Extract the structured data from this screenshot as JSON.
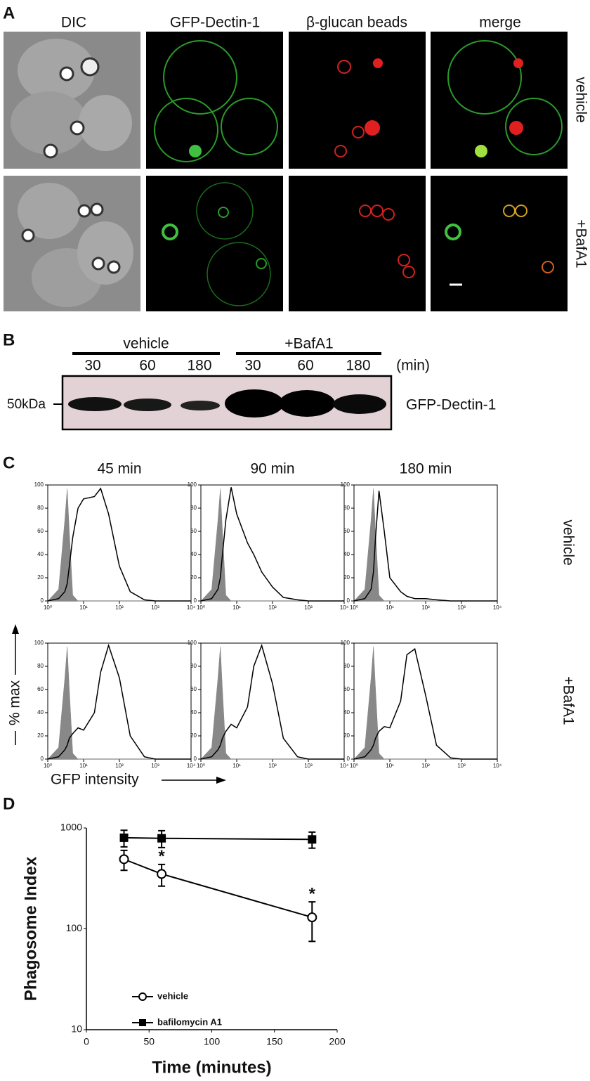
{
  "panels": {
    "A": {
      "label": "A",
      "columns": [
        "DIC",
        "GFP-Dectin-1",
        "β-glucan beads",
        "merge"
      ],
      "rows": [
        "vehicle",
        "+BafA1"
      ]
    },
    "B": {
      "label": "B",
      "groups": [
        "vehicle",
        "+BafA1"
      ],
      "times": [
        "30",
        "60",
        "180",
        "30",
        "60",
        "180"
      ],
      "unit": "(min)",
      "marker": "50kDa",
      "band_label": "GFP-Dectin-1"
    },
    "C": {
      "label": "C",
      "columns": [
        "45 min",
        "90 min",
        "180 min"
      ],
      "rows": [
        "vehicle",
        "+BafA1"
      ],
      "y_label": "% max",
      "x_label": "GFP intensity"
    },
    "D": {
      "label": "D"
    }
  },
  "chart_data": [
    {
      "type": "line",
      "frame": true,
      "log_x": true,
      "x": [
        1,
        2,
        3,
        3.5,
        4,
        5,
        7,
        10,
        20,
        30,
        50,
        100,
        200,
        500,
        1000,
        10000
      ],
      "series": [
        {
          "color": "#888888",
          "fill": true,
          "values": [
            0,
            10,
            70,
            97,
            60,
            5,
            0,
            0,
            0,
            0,
            0,
            0,
            0,
            0,
            0,
            0
          ]
        },
        {
          "color": "#000000",
          "values": [
            0,
            2,
            8,
            15,
            30,
            55,
            80,
            88,
            90,
            97,
            75,
            30,
            8,
            1,
            0,
            0
          ]
        }
      ],
      "xlim": [
        1,
        10000
      ],
      "xticks": [
        {
          "value": 1,
          "label": "10⁰"
        },
        {
          "value": 10,
          "label": "10¹"
        },
        {
          "value": 100,
          "label": "10²"
        },
        {
          "value": 1000,
          "label": "10³"
        },
        {
          "value": 10000,
          "label": "10⁴"
        }
      ],
      "ylim": [
        0,
        100
      ],
      "yticks": [
        0,
        20,
        40,
        60,
        80,
        100
      ]
    },
    {
      "type": "line",
      "frame": true,
      "log_x": true,
      "x": [
        1,
        2,
        3,
        3.5,
        4,
        5,
        7,
        10,
        20,
        30,
        50,
        100,
        200,
        500,
        1000,
        10000
      ],
      "series": [
        {
          "color": "#888888",
          "fill": true,
          "values": [
            0,
            10,
            70,
            97,
            60,
            5,
            0,
            0,
            0,
            0,
            0,
            0,
            0,
            0,
            0,
            0
          ]
        },
        {
          "color": "#000000",
          "values": [
            0,
            2,
            10,
            20,
            40,
            70,
            98,
            75,
            50,
            40,
            25,
            12,
            3,
            1,
            0,
            0
          ]
        }
      ],
      "xlim": [
        1,
        10000
      ],
      "xticks": [
        {
          "value": 1,
          "label": "10⁰"
        },
        {
          "value": 10,
          "label": "10¹"
        },
        {
          "value": 100,
          "label": "10²"
        },
        {
          "value": 1000,
          "label": "10³"
        },
        {
          "value": 10000,
          "label": "10⁴"
        }
      ],
      "ylim": [
        0,
        100
      ],
      "yticks": [
        0,
        20,
        40,
        60,
        80,
        100
      ]
    },
    {
      "type": "line",
      "frame": true,
      "log_x": true,
      "x": [
        1,
        2,
        3,
        3.5,
        4,
        5,
        7,
        10,
        20,
        30,
        50,
        100,
        200,
        500,
        1000,
        10000
      ],
      "series": [
        {
          "color": "#888888",
          "fill": true,
          "values": [
            0,
            10,
            70,
            97,
            60,
            5,
            0,
            0,
            0,
            0,
            0,
            0,
            0,
            0,
            0,
            0
          ]
        },
        {
          "color": "#000000",
          "values": [
            0,
            2,
            10,
            25,
            55,
            95,
            60,
            20,
            8,
            4,
            2,
            2,
            1,
            0,
            0,
            0
          ]
        }
      ],
      "xlim": [
        1,
        10000
      ],
      "xticks": [
        {
          "value": 1,
          "label": "10⁰"
        },
        {
          "value": 10,
          "label": "10¹"
        },
        {
          "value": 100,
          "label": "10²"
        },
        {
          "value": 1000,
          "label": "10³"
        },
        {
          "value": 10000,
          "label": "10⁴"
        }
      ],
      "ylim": [
        0,
        100
      ],
      "yticks": [
        0,
        20,
        40,
        60,
        80,
        100
      ]
    },
    {
      "type": "line",
      "frame": true,
      "log_x": true,
      "x": [
        1,
        2,
        3,
        3.5,
        4,
        5,
        7,
        10,
        20,
        30,
        50,
        100,
        200,
        500,
        1000,
        10000
      ],
      "series": [
        {
          "color": "#888888",
          "fill": true,
          "values": [
            0,
            10,
            70,
            97,
            60,
            5,
            0,
            0,
            0,
            0,
            0,
            0,
            0,
            0,
            0,
            0
          ]
        },
        {
          "color": "#000000",
          "values": [
            0,
            2,
            8,
            12,
            18,
            22,
            27,
            25,
            40,
            75,
            98,
            70,
            20,
            2,
            0,
            0
          ]
        }
      ],
      "xlim": [
        1,
        10000
      ],
      "xticks": [
        {
          "value": 1,
          "label": "10⁰"
        },
        {
          "value": 10,
          "label": "10¹"
        },
        {
          "value": 100,
          "label": "10²"
        },
        {
          "value": 1000,
          "label": "10³"
        },
        {
          "value": 10000,
          "label": "10⁴"
        }
      ],
      "ylim": [
        0,
        100
      ],
      "yticks": [
        0,
        20,
        40,
        60,
        80,
        100
      ]
    },
    {
      "type": "line",
      "frame": true,
      "log_x": true,
      "x": [
        1,
        2,
        3,
        3.5,
        4,
        5,
        7,
        10,
        20,
        30,
        50,
        100,
        200,
        500,
        1000,
        10000
      ],
      "series": [
        {
          "color": "#888888",
          "fill": true,
          "values": [
            0,
            10,
            70,
            97,
            60,
            5,
            0,
            0,
            0,
            0,
            0,
            0,
            0,
            0,
            0,
            0
          ]
        },
        {
          "color": "#000000",
          "values": [
            0,
            2,
            8,
            12,
            18,
            24,
            30,
            27,
            45,
            80,
            98,
            65,
            18,
            2,
            0,
            0
          ]
        }
      ],
      "xlim": [
        1,
        10000
      ],
      "xticks": [
        {
          "value": 1,
          "label": "10⁰"
        },
        {
          "value": 10,
          "label": "10¹"
        },
        {
          "value": 100,
          "label": "10²"
        },
        {
          "value": 1000,
          "label": "10³"
        },
        {
          "value": 10000,
          "label": "10⁴"
        }
      ],
      "ylim": [
        0,
        100
      ],
      "yticks": [
        0,
        20,
        40,
        60,
        80,
        100
      ]
    },
    {
      "type": "line",
      "frame": true,
      "log_x": true,
      "x": [
        1,
        2,
        3,
        3.5,
        4,
        5,
        7,
        10,
        20,
        30,
        50,
        100,
        200,
        500,
        1000,
        10000
      ],
      "series": [
        {
          "color": "#888888",
          "fill": true,
          "values": [
            0,
            10,
            70,
            97,
            60,
            5,
            0,
            0,
            0,
            0,
            0,
            0,
            0,
            0,
            0,
            0
          ]
        },
        {
          "color": "#000000",
          "values": [
            0,
            2,
            8,
            12,
            18,
            24,
            28,
            27,
            50,
            90,
            95,
            55,
            12,
            1,
            0,
            0
          ]
        }
      ],
      "xlim": [
        1,
        10000
      ],
      "xticks": [
        {
          "value": 1,
          "label": "10⁰"
        },
        {
          "value": 10,
          "label": "10¹"
        },
        {
          "value": 100,
          "label": "10²"
        },
        {
          "value": 1000,
          "label": "10³"
        },
        {
          "value": 10000,
          "label": "10⁴"
        }
      ],
      "ylim": [
        0,
        100
      ],
      "yticks": [
        0,
        20,
        40,
        60,
        80,
        100
      ]
    },
    {
      "type": "line",
      "frame": false,
      "log_y": true,
      "x": [
        30,
        60,
        180
      ],
      "series": [
        {
          "name": "vehicle",
          "color": "#000000",
          "marker": "open-circle",
          "values": [
            490,
            350,
            130
          ],
          "errors": [
            110,
            85,
            55
          ]
        },
        {
          "name": "bafilomycin A1",
          "color": "#000000",
          "marker": "filled-square",
          "values": [
            800,
            790,
            770
          ],
          "errors": [
            150,
            150,
            140
          ]
        }
      ],
      "annotations": [
        {
          "x": 60,
          "text": "*"
        },
        {
          "x": 180,
          "text": "*"
        }
      ],
      "xlim": [
        0,
        200
      ],
      "xticks": [
        0,
        50,
        100,
        150,
        200
      ],
      "ylim": [
        10,
        1000
      ],
      "yticks": [
        10,
        100,
        1000
      ],
      "x_label": "Time (minutes)",
      "y_label": "Phagosome Index"
    }
  ]
}
